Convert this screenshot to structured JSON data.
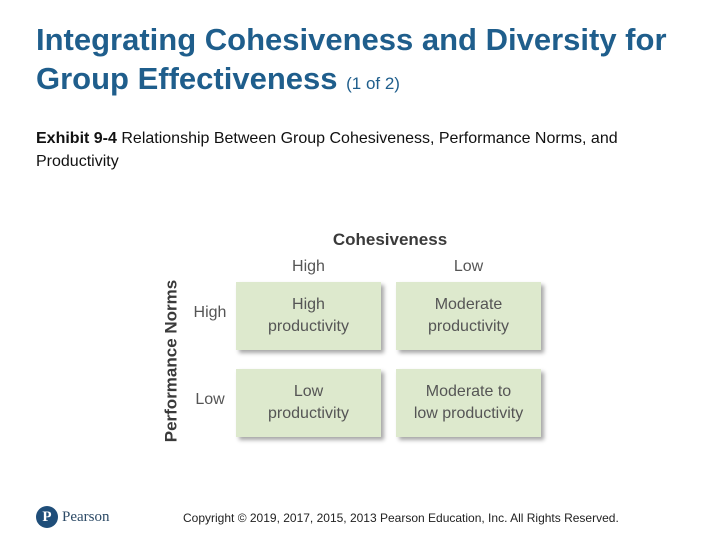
{
  "slide": {
    "title_main": "Integrating Cohesiveness and Diversity for Group Effectiveness",
    "title_suffix": "(1 of 2)",
    "exhibit_label": "Exhibit 9-4",
    "exhibit_text": "Relationship Between Group Cohesiveness, Performance Norms, and Productivity"
  },
  "matrix": {
    "column_axis_title": "Cohesiveness",
    "column_labels": [
      "High",
      "Low"
    ],
    "row_axis_title": "Performance Norms",
    "row_labels": [
      "High",
      "Low"
    ],
    "cells": [
      [
        "High\nproductivity",
        "Moderate\nproductivity"
      ],
      [
        "Low\nproductivity",
        "Moderate to\nlow productivity"
      ]
    ],
    "cell_color": "#dde9cd"
  },
  "footer": {
    "logo_mark": "P",
    "logo_text": "Pearson",
    "copyright": "Copyright © 2019, 2017, 2015, 2013 Pearson Education, Inc. All Rights Reserved."
  }
}
